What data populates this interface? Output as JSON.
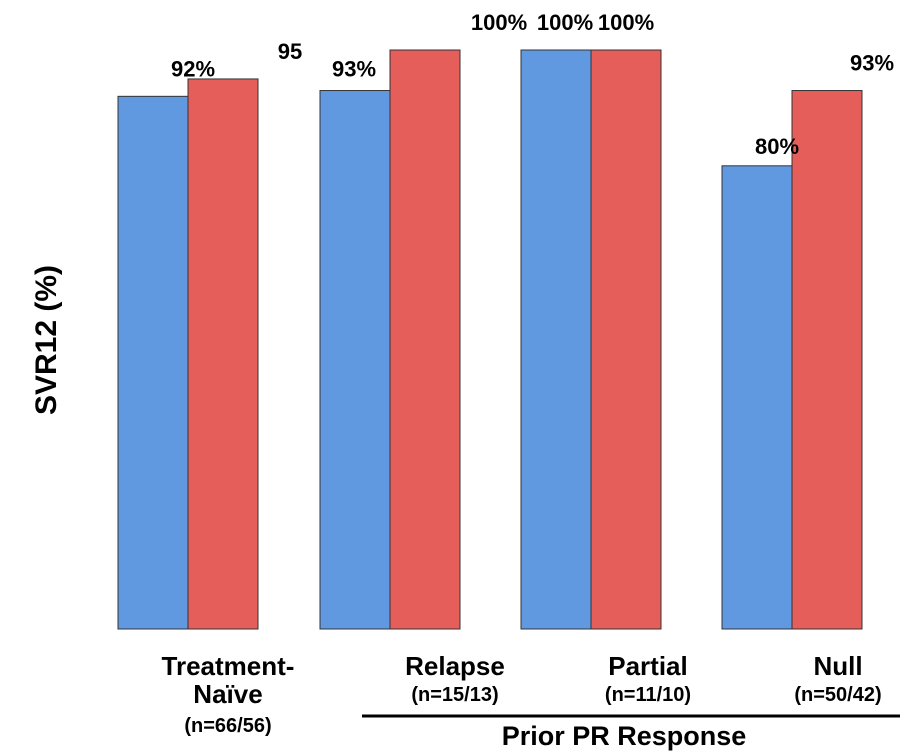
{
  "chart_data": {
    "type": "bar",
    "ylabel": "SVR12 (%)",
    "ylim": [
      0,
      100
    ],
    "grid": false,
    "legend": "none",
    "categories": [
      {
        "name": "Treatment-",
        "name2": "Naïve",
        "n": "(n=66/56)"
      },
      {
        "name": "Relapse",
        "name2": "",
        "n": "(n=15/13)"
      },
      {
        "name": "Partial",
        "name2": "",
        "n": "(n=11/10)"
      },
      {
        "name": "Null",
        "name2": "",
        "n": "(n=50/42)"
      }
    ],
    "series": [
      {
        "color": "#6199e1",
        "values": [
          92,
          93,
          100,
          80
        ],
        "labels": [
          "92%",
          "93%",
          "100%",
          "80%"
        ]
      },
      {
        "color": "#e55e5a",
        "values": [
          95,
          100,
          100,
          93
        ],
        "labels": [
          "95",
          "100%",
          "100%",
          "93%"
        ]
      }
    ],
    "group_label": "Prior PR Response"
  }
}
